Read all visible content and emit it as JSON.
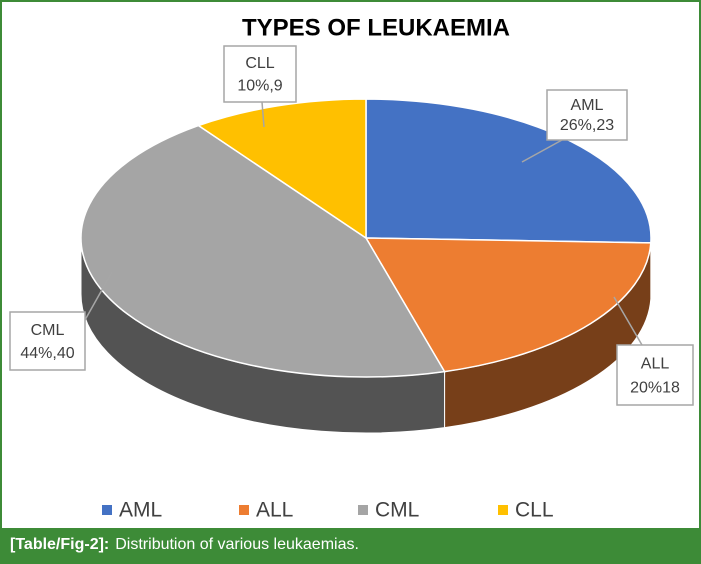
{
  "chart_data": {
    "type": "pie3d",
    "title": "TYPES OF LEUKAEMIA",
    "categories": [
      "AML",
      "ALL",
      "CML",
      "CLL"
    ],
    "values": [
      23,
      18,
      40,
      9
    ],
    "value_labels": [
      "26%,23",
      "20%18",
      "44%,40",
      "10%,9"
    ],
    "colors": [
      "#4472c4",
      "#ed7d31",
      "#a5a5a5",
      "#ffc000"
    ],
    "legend": "bottom"
  },
  "caption": {
    "label": "[Table/Fig-2]:",
    "text": "Distribution of various leukaemias."
  }
}
